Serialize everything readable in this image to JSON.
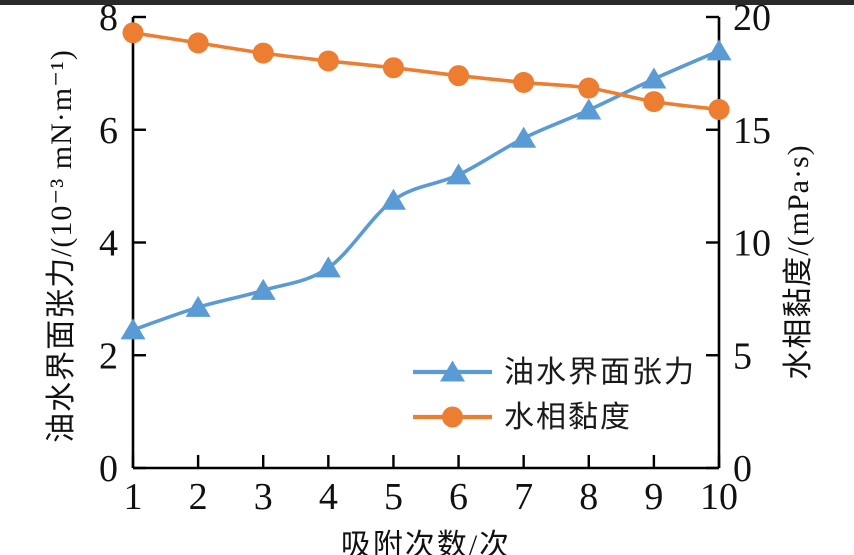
{
  "figure": {
    "background": "#ffffff",
    "top_border_color": "#2a2a2a"
  },
  "chart_data": {
    "type": "line",
    "title": "",
    "xlabel": "吸附次数/次",
    "x": [
      1,
      2,
      3,
      4,
      5,
      6,
      7,
      8,
      9,
      10
    ],
    "x_range": [
      1,
      10
    ],
    "x_ticks": [
      1,
      2,
      3,
      4,
      5,
      6,
      7,
      8,
      9,
      10
    ],
    "grid": false,
    "left_axis": {
      "title": "油水界面张力/(10⁻³ mN·m⁻¹)",
      "range": [
        0,
        8
      ],
      "ticks": [
        0,
        2,
        4,
        6,
        8
      ]
    },
    "right_axis": {
      "title": "水相黏度/(mPa·s)",
      "range": [
        0,
        20
      ],
      "ticks": [
        0,
        5,
        10,
        15,
        20
      ]
    },
    "series": [
      {
        "name": "油水界面张力",
        "axis": "left",
        "marker": "triangle",
        "color": "#5B9BD5",
        "values": [
          2.45,
          2.85,
          3.15,
          3.55,
          4.75,
          5.2,
          5.85,
          6.35,
          6.9,
          7.4
        ]
      },
      {
        "name": "水相黏度",
        "axis": "right",
        "marker": "circle",
        "color": "#ED7D31",
        "values": [
          19.3,
          18.85,
          18.4,
          18.05,
          17.75,
          17.4,
          17.1,
          16.85,
          16.25,
          15.9
        ]
      }
    ],
    "legend": {
      "position": "inside-lower-right",
      "entries": [
        "油水界面张力",
        "水相黏度"
      ]
    }
  },
  "colors": {
    "blue": "#5B9BD5",
    "orange": "#ED7D31",
    "axis": "#000000",
    "text": "#111111"
  }
}
